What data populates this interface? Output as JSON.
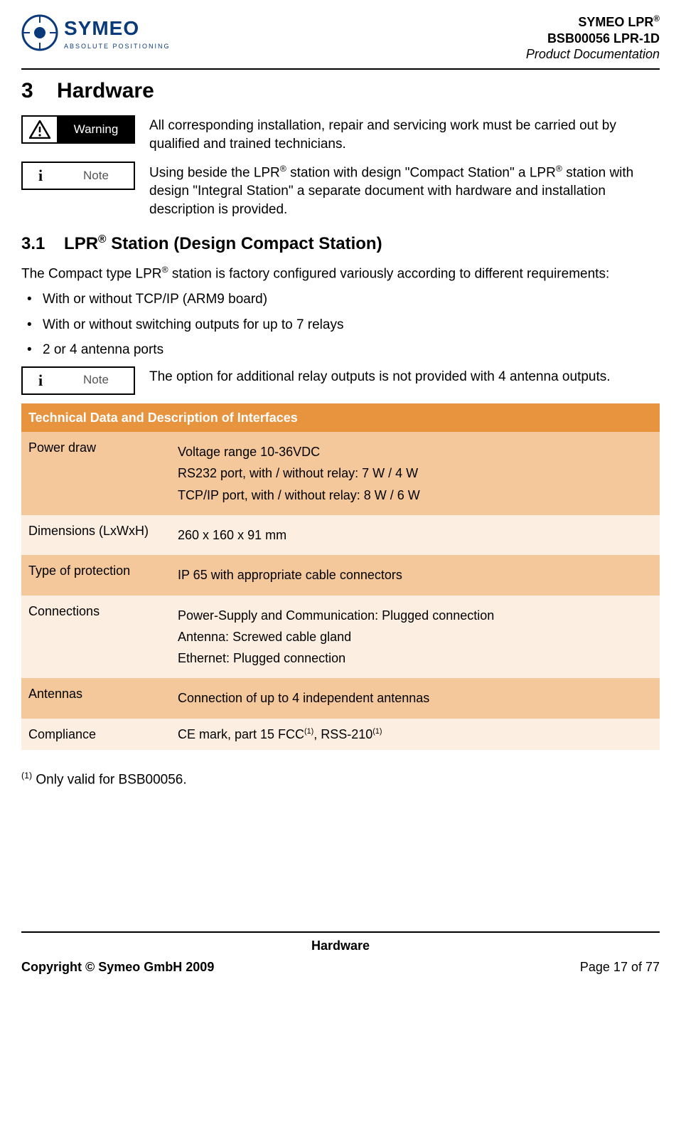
{
  "header": {
    "logo_text_top": "SYMEO",
    "logo_text_bottom": "ABSOLUTE POSITIONING",
    "line1_a": "SYMEO LPR",
    "line1_sup": "®",
    "line2": "BSB00056 LPR-1D",
    "line3": "Product Documentation"
  },
  "section": {
    "num": "3",
    "title": "Hardware"
  },
  "warning": {
    "label": "Warning",
    "text": "All corresponding installation, repair and servicing work must be carried out by qualified and trained technicians."
  },
  "note1": {
    "label": "Note",
    "text_a": "Using beside the LPR",
    "sup": "®",
    "text_b": " station with design \"Compact Station\" a LPR",
    "text_c": "station with design \"Integral Station\" a separate document with hardware and installation description is provided."
  },
  "subsection": {
    "num": "3.1",
    "title_a": "LPR",
    "title_sup": "®",
    "title_b": " Station (Design Compact Station)"
  },
  "intro": {
    "text_a": "The Compact type LPR",
    "sup": "®",
    "text_b": " station is factory configured variously according to different requirements:"
  },
  "bullets": [
    "With  or without TCP/IP (ARM9 board)",
    "With or without switching outputs for up to 7 relays",
    "2 or 4 antenna ports"
  ],
  "note2": {
    "label": "Note",
    "text": "The option for additional relay outputs is not provided with 4 antenna outputs."
  },
  "table": {
    "header": "Technical Data and Description of Interfaces",
    "header_bg": "#e8933e",
    "row_bg_dark": "#f4c89a",
    "row_bg_light": "#fcefe2",
    "rows": [
      {
        "label": "Power draw",
        "lines": [
          "Voltage range 10-36VDC",
          "RS232 port, with / without relay: 7 W / 4 W",
          "TCP/IP port, with / without relay: 8 W / 6 W"
        ]
      },
      {
        "label": "Dimensions (LxWxH)",
        "lines": [
          "260 x 160 x 91 mm"
        ]
      },
      {
        "label": "Type of protection",
        "lines": [
          "IP 65 with appropriate cable connectors"
        ]
      },
      {
        "label": "Connections",
        "lines": [
          "Power-Supply and Communication: Plugged connection",
          "Antenna: Screwed cable gland",
          "Ethernet: Plugged connection"
        ]
      },
      {
        "label": "Antennas",
        "lines": [
          "Connection of up to 4 independent antennas"
        ]
      },
      {
        "label": "Compliance",
        "lines_html": "compliance"
      }
    ],
    "compliance_a": "CE mark, part 15 FCC",
    "compliance_sup": "(1)",
    "compliance_b": ", RSS-210",
    "compliance_sup2": "(1)"
  },
  "footnote": {
    "sup": "(1)",
    "text": " Only valid for BSB00056."
  },
  "footer": {
    "center": "Hardware",
    "copyright": "Copyright © Symeo GmbH 2009",
    "page": "Page 17 of 77"
  }
}
